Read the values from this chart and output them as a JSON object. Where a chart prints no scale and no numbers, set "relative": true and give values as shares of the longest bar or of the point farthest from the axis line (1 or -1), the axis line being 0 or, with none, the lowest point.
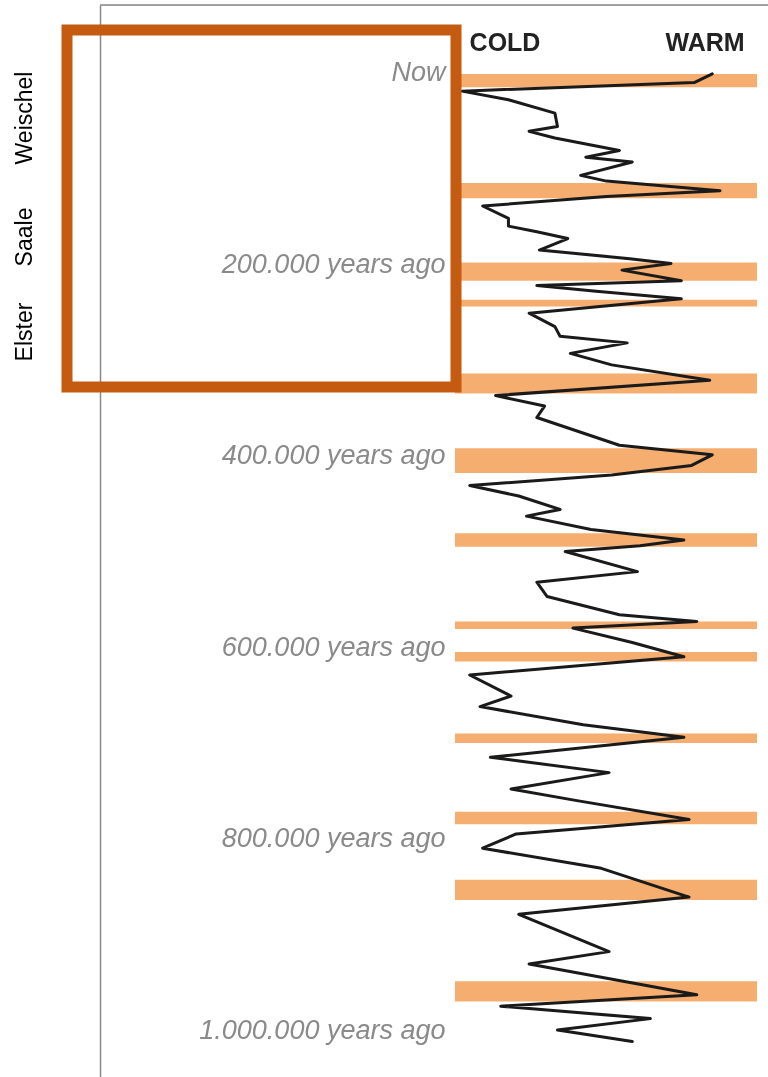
{
  "chart_data": {
    "type": "line",
    "orientation": "horizontal",
    "relative": true,
    "x": [
      1000,
      10000,
      19000,
      28000,
      42000,
      56000,
      61000,
      68000,
      81000,
      88000,
      93000,
      107000,
      113000,
      123000,
      129000,
      139000,
      152000,
      160000,
      166000,
      173000,
      185000,
      194000,
      199000,
      206000,
      217000,
      222000,
      228000,
      236000,
      251000,
      265000,
      275000,
      282000,
      293000,
      305000,
      321000,
      337000,
      348000,
      360000,
      389000,
      399000,
      410000,
      420000,
      431000,
      442000,
      456000,
      463000,
      477000,
      488000,
      494000,
      500000,
      521000,
      532000,
      547000,
      566000,
      573000,
      580000,
      595000,
      610000,
      629000,
      651000,
      662000,
      681000,
      694000,
      715000,
      731000,
      748000,
      760000,
      780000,
      795000,
      810000,
      831000,
      861000,
      879000,
      918000,
      931000,
      963000,
      975000,
      988000,
      1000000,
      1012000
    ],
    "series": [
      {
        "color": "#1a1a1a",
        "values": [
          0.97,
          0.9,
          0.0,
          0.18,
          0.36,
          0.37,
          0.26,
          0.36,
          0.61,
          0.48,
          0.66,
          0.46,
          0.56,
          1.0,
          0.56,
          0.08,
          0.18,
          0.18,
          0.29,
          0.41,
          0.3,
          0.65,
          0.81,
          0.62,
          0.85,
          0.29,
          0.52,
          0.85,
          0.26,
          0.36,
          0.38,
          0.64,
          0.42,
          0.58,
          0.96,
          0.13,
          0.32,
          0.29,
          0.61,
          0.97,
          0.89,
          0.58,
          0.03,
          0.22,
          0.38,
          0.25,
          0.5,
          0.86,
          0.69,
          0.4,
          0.68,
          0.29,
          0.33,
          0.61,
          0.91,
          0.43,
          0.66,
          0.86,
          0.03,
          0.19,
          0.07,
          0.47,
          0.86,
          0.11,
          0.57,
          0.19,
          0.44,
          0.88,
          0.21,
          0.08,
          0.54,
          0.88,
          0.22,
          0.57,
          0.26,
          0.91,
          0.15,
          0.73,
          0.37,
          0.66
        ]
      }
    ],
    "ylim": [
      1049000,
      -71000
    ],
    "yticks": [
      {
        "value": 0,
        "label": "Now"
      },
      {
        "value": 200000,
        "label": "200.000 years ago"
      },
      {
        "value": 400000,
        "label": "400.000 years ago"
      },
      {
        "value": 600000,
        "label": "600.000 years ago"
      },
      {
        "value": 800000,
        "label": "800.000 years ago"
      },
      {
        "value": 1000000,
        "label": "1.000.000 years ago"
      }
    ],
    "bands": [
      {
        "axis": "y",
        "from": 1000,
        "to": 15000,
        "color": "#f4a460"
      },
      {
        "axis": "y",
        "from": 115000,
        "to": 131000,
        "color": "#f4a460"
      },
      {
        "axis": "y",
        "from": 198000,
        "to": 217000,
        "color": "#f4a460"
      },
      {
        "axis": "y",
        "from": 237000,
        "to": 244000,
        "color": "#f4a460"
      },
      {
        "axis": "y",
        "from": 314000,
        "to": 335000,
        "color": "#f4a460"
      },
      {
        "axis": "y",
        "from": 392000,
        "to": 418000,
        "color": "#f4a460"
      },
      {
        "axis": "y",
        "from": 481000,
        "to": 495000,
        "color": "#f4a460"
      },
      {
        "axis": "y",
        "from": 573000,
        "to": 581000,
        "color": "#f4a460"
      },
      {
        "axis": "y",
        "from": 605000,
        "to": 615000,
        "color": "#f4a460"
      },
      {
        "axis": "y",
        "from": 690000,
        "to": 700000,
        "color": "#f4a460"
      },
      {
        "axis": "y",
        "from": 772000,
        "to": 785000,
        "color": "#f4a460"
      },
      {
        "axis": "y",
        "from": 843000,
        "to": 864000,
        "color": "#f4a460"
      },
      {
        "axis": "y",
        "from": 949000,
        "to": 970000,
        "color": "#f4a460"
      }
    ],
    "annotations": [
      "COLD",
      "WARM",
      "Weischel",
      "Saale",
      "Elster"
    ]
  }
}
